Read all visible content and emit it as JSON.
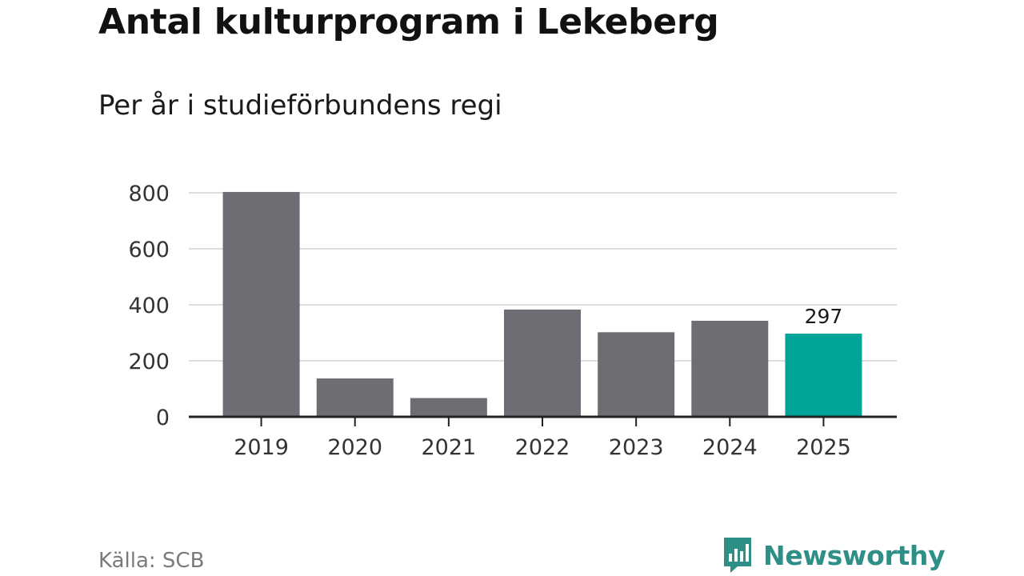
{
  "header": {
    "title": "Antal kulturprogram i Lekeberg",
    "subtitle": "Per år i studieförbundens regi"
  },
  "chart_data": {
    "type": "bar",
    "categories": [
      "2019",
      "2020",
      "2021",
      "2022",
      "2023",
      "2024",
      "2025"
    ],
    "values": [
      803,
      137,
      67,
      383,
      302,
      343,
      297
    ],
    "highlight_index": 6,
    "data_labels": [
      {
        "index": 6,
        "text": "297"
      }
    ],
    "yticks": [
      "0",
      "200",
      "400",
      "600",
      "800"
    ],
    "ylim": [
      0,
      800
    ],
    "gridlines": true,
    "title": "Antal kulturprogram i Lekeberg",
    "subtitle": "Per år i studieförbundens regi",
    "xlabel": "",
    "ylabel": ""
  },
  "footer": {
    "source": "Källa: SCB",
    "brand": "Newsworthy"
  },
  "colors": {
    "bar": "#6e6d73",
    "highlight": "#00a498",
    "grid": "#dedede",
    "axis": "#222222",
    "tick_text": "#333333",
    "brand": "#2e8f86"
  },
  "icons": {
    "brand_logo": "bar-chart-speech-bubble-icon"
  }
}
